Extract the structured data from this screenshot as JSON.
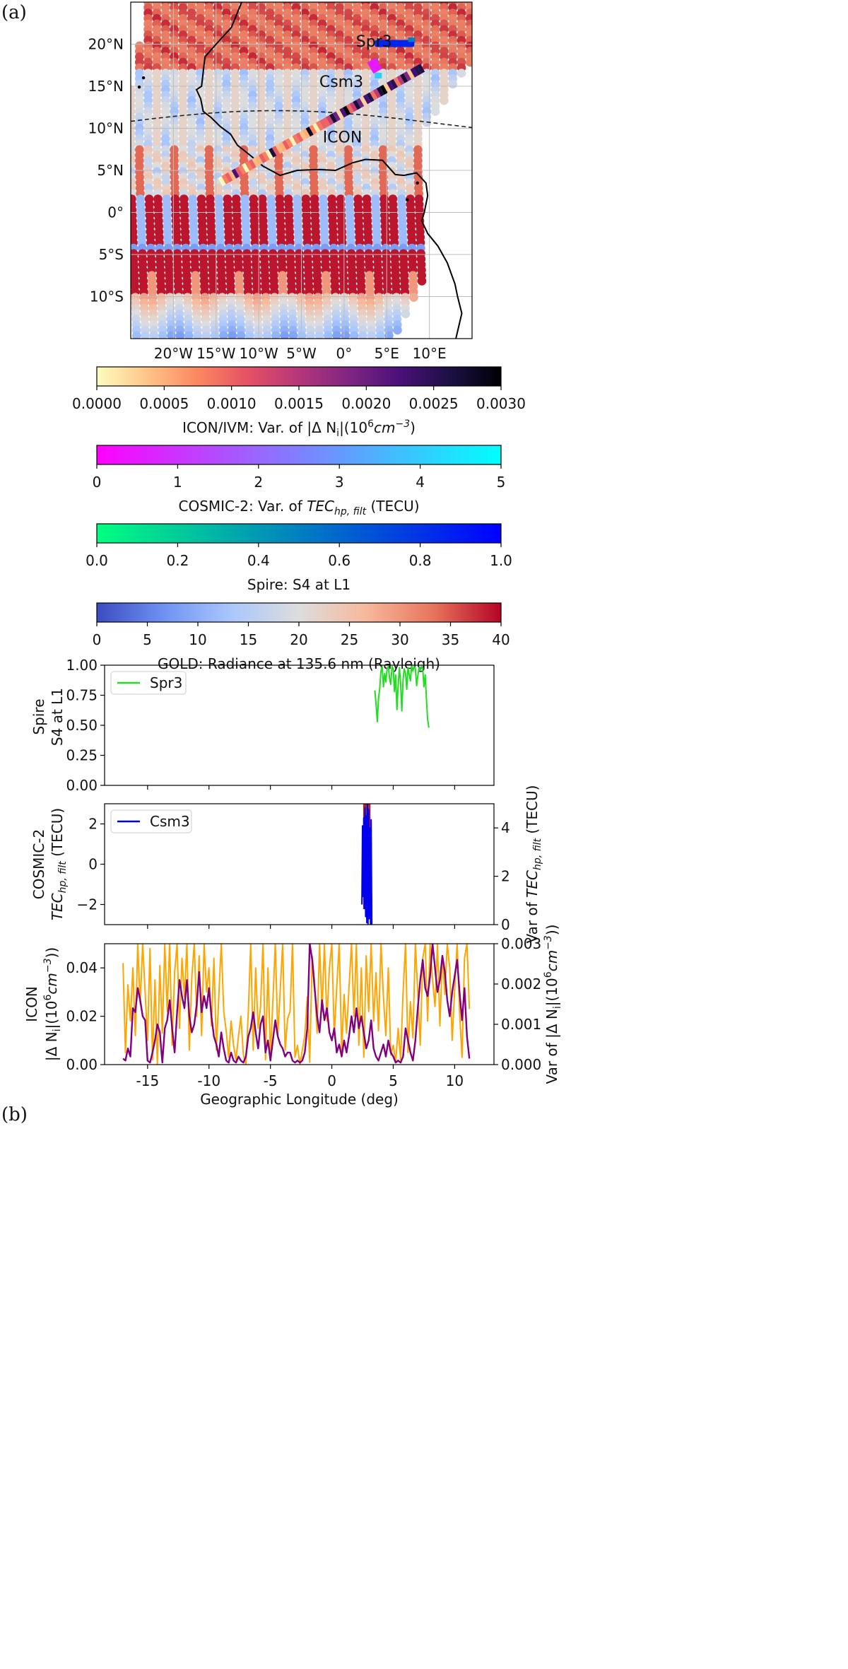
{
  "panel_labels": {
    "a": "(a)",
    "b": "(b)"
  },
  "map": {
    "lat_ticks": [
      "20°N",
      "15°N",
      "10°N",
      "5°N",
      "0°",
      "5°S",
      "10°S"
    ],
    "lat_values": [
      20,
      15,
      10,
      5,
      0,
      -5,
      -10
    ],
    "lon_ticks": [
      "20°W",
      "15°W",
      "10°W",
      "5°W",
      "0°",
      "5°E",
      "10°E"
    ],
    "lon_values": [
      -20,
      -15,
      -10,
      -5,
      0,
      5,
      10
    ],
    "lon_range": [
      -25,
      15
    ],
    "lat_range": [
      -15,
      25
    ],
    "labels": {
      "spire": "Spr3",
      "cosmic": "Csm3",
      "icon": "ICON"
    }
  },
  "colorbars": [
    {
      "label": "ICON/IVM: Var. of |Δ N",
      "label_sub": "i",
      "label_tail": "|(10",
      "label_sup": "6",
      "label_unit": "cm",
      "label_unit_sup": "−3",
      "label_close": ")",
      "ticks": [
        "0.0000",
        "0.0005",
        "0.0010",
        "0.0015",
        "0.0020",
        "0.0025",
        "0.0030"
      ],
      "stops": [
        "#fcfdbf",
        "#fec488",
        "#fc8761",
        "#e55064",
        "#b5367a",
        "#7f2582",
        "#4a1079",
        "#1c1044",
        "#000004"
      ]
    },
    {
      "label": "COSMIC-2: Var. of ",
      "label_italic": "TEC",
      "label_sub": "hp, filt",
      "label_tail": " (TECU)",
      "ticks": [
        "0",
        "1",
        "2",
        "3",
        "4",
        "5"
      ],
      "stops": [
        "#ff00ff",
        "#00ffff"
      ]
    },
    {
      "label": "Spire: S4 at L1",
      "ticks": [
        "0.0",
        "0.2",
        "0.4",
        "0.6",
        "0.8",
        "1.0"
      ],
      "stops": [
        "#00ff80",
        "#0080c0",
        "#0000ff"
      ]
    },
    {
      "label": "GOLD: Radiance at 135.6 nm (Rayleigh)",
      "ticks": [
        "0",
        "5",
        "10",
        "15",
        "20",
        "25",
        "30",
        "35",
        "40"
      ],
      "stops": [
        "#3b4cc0",
        "#6f92f3",
        "#aac7fd",
        "#dddddd",
        "#f7b89c",
        "#e7745b",
        "#b40426"
      ]
    }
  ],
  "colors": {
    "spire": "#22dd22",
    "cosmic": "#0000ee",
    "cosmic_var": "#a52a2a",
    "icon": "#ffa500",
    "icon_var": "#800080"
  },
  "chart_data": [
    {
      "type": "line",
      "ylabel_line1": "Spire",
      "ylabel_line2": "S4 at L1",
      "ylim": [
        0.0,
        1.0
      ],
      "yticks": [
        "0.00",
        "0.25",
        "0.50",
        "0.75",
        "1.00"
      ],
      "xlim": [
        -18.5,
        13.2
      ],
      "legend": "Spr3",
      "legend_loc": "upper left",
      "series": [
        {
          "name": "Spr3",
          "x": [
            3.5,
            3.6,
            3.7,
            3.8,
            3.9,
            4.0,
            4.1,
            4.2,
            4.3,
            4.4,
            4.5,
            4.6,
            4.7,
            4.8,
            4.9,
            5.0,
            5.1,
            5.2,
            5.3,
            5.4,
            5.5,
            5.6,
            5.7,
            5.8,
            5.9,
            6.0,
            6.1,
            6.2,
            6.3,
            6.4,
            6.5,
            6.6,
            6.7,
            6.8,
            6.9,
            7.0,
            7.1,
            7.2,
            7.3,
            7.4,
            7.5,
            7.6,
            7.7,
            7.8,
            7.9
          ],
          "values": [
            0.79,
            0.68,
            0.53,
            0.72,
            0.81,
            0.95,
            0.99,
            0.82,
            0.93,
            0.86,
            0.97,
            0.99,
            0.89,
            0.84,
            0.99,
            0.97,
            0.78,
            0.92,
            0.63,
            0.83,
            0.98,
            0.85,
            0.62,
            0.88,
            0.97,
            0.93,
            0.8,
            0.98,
            0.92,
            0.87,
            1.0,
            0.95,
            0.99,
            0.97,
            0.83,
            0.91,
            0.98,
            0.96,
            0.99,
            0.97,
            0.82,
            0.92,
            0.72,
            0.55,
            0.48
          ]
        }
      ]
    },
    {
      "type": "line",
      "ylabel_line1": "COSMIC-2",
      "ylabel_italic": "TEC",
      "ylabel_sub": "hp, filt",
      "ylabel_unit": " (TECU)",
      "y2label_prefix": "Var of ",
      "y2label_italic": "TEC",
      "y2label_sub": "hp, filt",
      "y2label_unit": " (TECU)",
      "ylim": [
        -3,
        3
      ],
      "yticks": [
        "−2",
        "0",
        "2"
      ],
      "ytick_values": [
        -2,
        0,
        2
      ],
      "y2lim": [
        0,
        5
      ],
      "y2ticks": [
        "0",
        "2",
        "4"
      ],
      "y2tick_values": [
        0,
        2,
        4
      ],
      "xlim": [
        -18.5,
        13.2
      ],
      "legend": "Csm3",
      "legend_loc": "upper left",
      "series": [
        {
          "name": "Csm3",
          "x": [
            2.45,
            2.5,
            2.55,
            2.6,
            2.65,
            2.7,
            2.75,
            2.8,
            2.85,
            2.9,
            2.95,
            3.0,
            3.05,
            3.1,
            3.15,
            3.2,
            3.25
          ],
          "values": [
            -2.0,
            1.9,
            -1.6,
            2.3,
            -2.2,
            2.8,
            -2.6,
            2.4,
            -2.9,
            3.0,
            -3.0,
            2.7,
            -2.7,
            1.8,
            -3.0,
            2.2,
            -3.0
          ]
        },
        {
          "name": "Var",
          "x": [
            2.55,
            3.15
          ],
          "values": [
            5.0,
            5.0
          ]
        }
      ]
    },
    {
      "type": "line",
      "ylabel_line1": "ICON",
      "ylabel_line2": "|Δ N",
      "ylabel_sub": "i",
      "ylabel_tail": "|(10",
      "ylabel_sup": "6",
      "ylabel_unit": "cm",
      "ylabel_unit_sup": "−3",
      "ylabel_close": "))",
      "y2label": "Var of |Δ N",
      "y2label_sub": "i",
      "y2label_tail": "|(10",
      "y2label_sup": "6",
      "y2label_unit": "cm",
      "y2label_unit_sup": "−3",
      "y2label_close": "))",
      "xlabel": "Geographic Longitude (deg)",
      "xlim": [
        -18.5,
        13.2
      ],
      "xticks": [
        "-15",
        "-10",
        "-5",
        "0",
        "5",
        "10"
      ],
      "xtick_values": [
        -15,
        -10,
        -5,
        0,
        5,
        10
      ],
      "ylim": [
        0.0,
        0.05
      ],
      "yticks": [
        "0.00",
        "0.02",
        "0.04"
      ],
      "ytick_values": [
        0.0,
        0.02,
        0.04
      ],
      "y2lim": [
        0.0,
        0.003
      ],
      "y2ticks": [
        "0.000",
        "0.001",
        "0.002",
        "0.003"
      ],
      "y2tick_values": [
        0.0,
        0.001,
        0.002,
        0.003
      ],
      "series": [
        {
          "name": "ICON |ΔNi|",
          "x": [
            -17.0,
            -16.8,
            -16.6,
            -16.4,
            -16.2,
            -16.0,
            -15.8,
            -15.6,
            -15.4,
            -15.2,
            -15.0,
            -14.8,
            -14.6,
            -14.4,
            -14.2,
            -14.0,
            -13.8,
            -13.6,
            -13.4,
            -13.2,
            -13.0,
            -12.8,
            -12.6,
            -12.4,
            -12.2,
            -12.0,
            -11.8,
            -11.6,
            -11.4,
            -11.2,
            -11.0,
            -10.8,
            -10.6,
            -10.4,
            -10.2,
            -10.0,
            -9.8,
            -9.6,
            -9.4,
            -9.2,
            -9.0,
            -8.8,
            -8.6,
            -8.4,
            -8.2,
            -8.0,
            -7.8,
            -7.6,
            -7.4,
            -7.2,
            -7.0,
            -6.8,
            -6.6,
            -6.4,
            -6.2,
            -6.0,
            -5.8,
            -5.6,
            -5.4,
            -5.2,
            -5.0,
            -4.8,
            -4.6,
            -4.4,
            -4.2,
            -4.0,
            -3.8,
            -3.6,
            -3.4,
            -3.2,
            -3.0,
            -2.8,
            -2.6,
            -2.4,
            -2.2,
            -2.0,
            -1.8,
            -1.6,
            -1.4,
            -1.2,
            -1.0,
            -0.8,
            -0.6,
            -0.4,
            -0.2,
            0.0,
            0.2,
            0.4,
            0.6,
            0.8,
            1.0,
            1.2,
            1.4,
            1.6,
            1.8,
            2.0,
            2.2,
            2.4,
            2.6,
            2.8,
            3.0,
            3.2,
            3.4,
            3.6,
            3.8,
            4.0,
            4.2,
            4.4,
            4.6,
            4.8,
            5.0,
            5.2,
            5.4,
            5.6,
            5.8,
            6.0,
            6.2,
            6.4,
            6.6,
            6.8,
            7.0,
            7.2,
            7.4,
            7.6,
            7.8,
            8.0,
            8.2,
            8.4,
            8.6,
            8.8,
            9.0,
            9.2,
            9.4,
            9.6,
            9.8,
            10.0,
            10.2,
            10.4,
            10.6,
            10.8,
            11.0,
            11.2
          ],
          "values": [
            0.042,
            0.005,
            0.033,
            0.018,
            0.04,
            0.012,
            0.05,
            0.025,
            0.05,
            0.03,
            0.01,
            0.048,
            0.002,
            0.035,
            0.0,
            0.041,
            0.013,
            0.05,
            0.022,
            0.05,
            0.008,
            0.038,
            0.05,
            0.015,
            0.044,
            0.028,
            0.05,
            0.006,
            0.036,
            0.05,
            0.02,
            0.045,
            0.012,
            0.05,
            0.03,
            0.04,
            0.016,
            0.044,
            0.006,
            0.028,
            0.05,
            0.022,
            0.014,
            0.003,
            0.018,
            0.008,
            0.002,
            0.012,
            0.02,
            0.004,
            0.0,
            0.022,
            0.05,
            0.006,
            0.04,
            0.015,
            0.024,
            0.05,
            0.002,
            0.04,
            0.004,
            0.026,
            0.05,
            0.012,
            0.031,
            0.05,
            0.006,
            0.019,
            0.022,
            0.05,
            0.003,
            0.008,
            0.0,
            0.006,
            0.012,
            0.028,
            0.001,
            0.045,
            0.034,
            0.013,
            0.05,
            0.022,
            0.05,
            0.018,
            0.04,
            0.05,
            0.012,
            0.032,
            0.05,
            0.006,
            0.029,
            0.013,
            0.032,
            0.05,
            0.02,
            0.05,
            0.008,
            0.04,
            0.003,
            0.045,
            0.022,
            0.05,
            0.018,
            0.038,
            0.014,
            0.05,
            0.028,
            0.012,
            0.04,
            0.004,
            0.008,
            0.001,
            0.015,
            0.002,
            0.03,
            0.05,
            0.005,
            0.026,
            0.011,
            0.05,
            0.03,
            0.008,
            0.044,
            0.05,
            0.018,
            0.05,
            0.035,
            0.024,
            0.05,
            0.016,
            0.045,
            0.029,
            0.05,
            0.04,
            0.01,
            0.031,
            0.05,
            0.022,
            0.003,
            0.044,
            0.05,
            0.023
          ]
        },
        {
          "name": "Var of |ΔNi|",
          "x": [
            -17.0,
            -16.8,
            -16.6,
            -16.4,
            -16.2,
            -16.0,
            -15.8,
            -15.6,
            -15.4,
            -15.2,
            -15.0,
            -14.8,
            -14.6,
            -14.4,
            -14.2,
            -14.0,
            -13.8,
            -13.6,
            -13.4,
            -13.2,
            -13.0,
            -12.8,
            -12.6,
            -12.4,
            -12.2,
            -12.0,
            -11.8,
            -11.6,
            -11.4,
            -11.2,
            -11.0,
            -10.8,
            -10.6,
            -10.4,
            -10.2,
            -10.0,
            -9.8,
            -9.6,
            -9.4,
            -9.2,
            -9.0,
            -8.8,
            -8.6,
            -8.4,
            -8.2,
            -8.0,
            -7.8,
            -7.6,
            -7.4,
            -7.2,
            -7.0,
            -6.8,
            -6.6,
            -6.4,
            -6.2,
            -6.0,
            -5.8,
            -5.6,
            -5.4,
            -5.2,
            -5.0,
            -4.8,
            -4.6,
            -4.4,
            -4.2,
            -4.0,
            -3.8,
            -3.6,
            -3.4,
            -3.2,
            -3.0,
            -2.8,
            -2.6,
            -2.4,
            -2.2,
            -2.0,
            -1.8,
            -1.6,
            -1.4,
            -1.2,
            -1.0,
            -0.8,
            -0.6,
            -0.4,
            -0.2,
            0.0,
            0.2,
            0.4,
            0.6,
            0.8,
            1.0,
            1.2,
            1.4,
            1.6,
            1.8,
            2.0,
            2.2,
            2.4,
            2.6,
            2.8,
            3.0,
            3.2,
            3.4,
            3.6,
            3.8,
            4.0,
            4.2,
            4.4,
            4.6,
            4.8,
            5.0,
            5.2,
            5.4,
            5.6,
            5.8,
            6.0,
            6.2,
            6.4,
            6.6,
            6.8,
            7.0,
            7.2,
            7.4,
            7.6,
            7.8,
            8.0,
            8.2,
            8.4,
            8.6,
            8.8,
            9.0,
            9.2,
            9.4,
            9.6,
            9.8,
            10.0,
            10.2,
            10.4,
            10.6,
            10.8,
            11.0,
            11.2
          ],
          "values": [
            0.00015,
            0.0001,
            0.0004,
            0.0002,
            0.0014,
            0.0013,
            0.0019,
            0.0016,
            0.0012,
            0.0011,
            0.0001,
            5e-05,
            0.0003,
            0.0006,
            0.001,
            0.0008,
            5e-05,
            0.0009,
            0.0011,
            0.0016,
            0.0009,
            0.0003,
            0.0013,
            0.0021,
            0.0017,
            0.0014,
            0.0021,
            0.0012,
            0.0008,
            0.001,
            0.0015,
            0.0023,
            0.0013,
            0.0017,
            0.0014,
            0.0019,
            0.0012,
            0.0007,
            0.0005,
            0.0002,
            0.0008,
            0.0004,
            0.0001,
            5e-05,
            0.0003,
            0.0001,
            5e-05,
            0.0002,
            0.0001,
            5e-05,
            0.0002,
            0.0007,
            0.0009,
            0.0013,
            0.0008,
            0.0004,
            0.001,
            0.0012,
            0.0003,
            0.0006,
            0.0001,
            0.0006,
            0.0011,
            0.0007,
            0.0005,
            0.0004,
            0.0002,
            0.0003,
            0.0003,
            0.0001,
            5e-05,
            0.0001,
            5e-05,
            0.0001,
            0.0003,
            0.0009,
            0.003,
            0.0026,
            0.0019,
            0.0012,
            0.0008,
            0.0016,
            0.0011,
            0.0014,
            0.0008,
            0.0006,
            0.0009,
            0.0003,
            0.0005,
            0.0002,
            0.0006,
            0.0003,
            0.0007,
            0.0012,
            0.0008,
            0.0014,
            0.0009,
            0.0012,
            0.0008,
            0.0004,
            0.0006,
            0.0011,
            0.0004,
            0.0002,
            0.0001,
            0.0003,
            0.0005,
            0.0002,
            0.0006,
            0.0003,
            0.0002,
            5e-05,
            0.0001,
            5e-05,
            0.0002,
            0.0009,
            0.0006,
            0.0003,
            0.0001,
            0.0006,
            0.0014,
            0.0021,
            0.0026,
            0.0019,
            0.0017,
            0.0022,
            0.003,
            0.0024,
            0.0018,
            0.0021,
            0.0027,
            0.0023,
            0.0016,
            0.0012,
            0.0018,
            0.0022,
            0.0026,
            0.0018,
            0.0011,
            0.0019,
            0.0007,
            0.00015
          ]
        }
      ]
    }
  ]
}
